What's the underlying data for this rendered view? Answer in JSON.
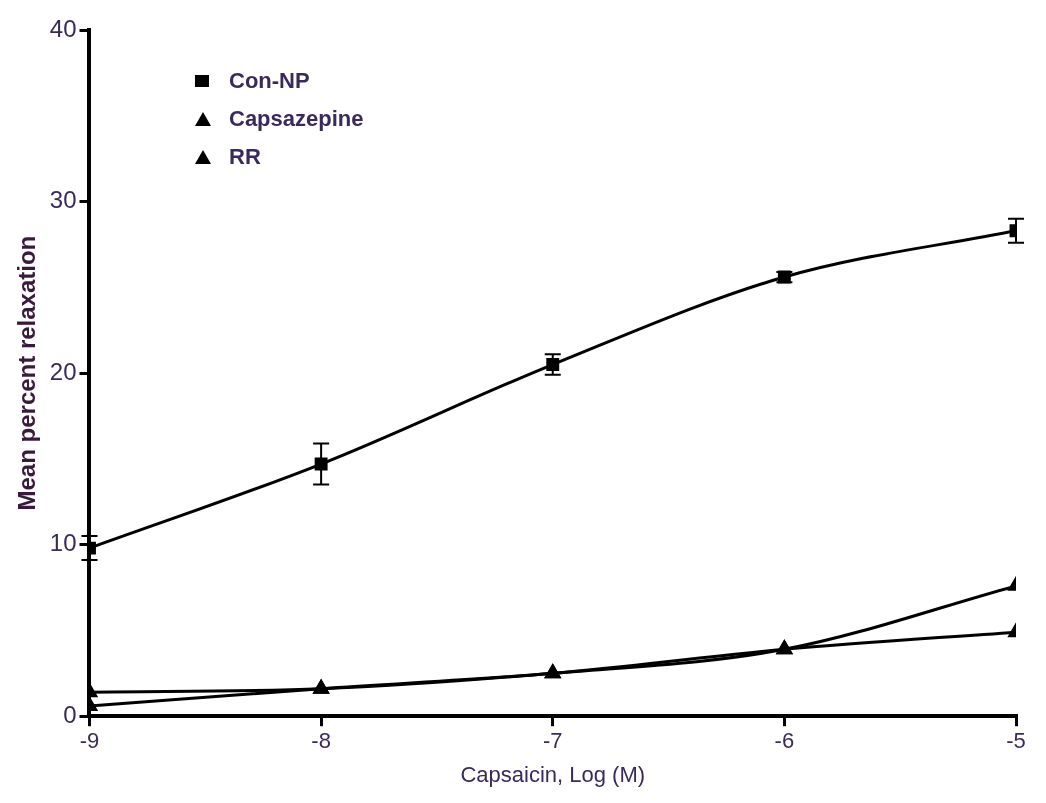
{
  "chart_data": {
    "type": "line",
    "xlabel": "Capsaicin, Log (M)",
    "ylabel": "Mean percent relaxation",
    "x": [
      -9,
      -8,
      -7,
      -6,
      -5
    ],
    "series": [
      {
        "name": "Con-NP",
        "color": "#000000",
        "marker": "square",
        "values": [
          9.8,
          14.7,
          20.5,
          25.6,
          28.3
        ],
        "errors": [
          0.7,
          1.2,
          0.6,
          0.3,
          0.7
        ]
      },
      {
        "name": "Capsazepine",
        "color": "#000000",
        "marker": "triangle",
        "values": [
          0.6,
          1.6,
          2.5,
          3.9,
          7.6
        ]
      },
      {
        "name": "RR",
        "color": "#000000",
        "marker": "triangle",
        "values": [
          1.4,
          1.6,
          2.5,
          3.9,
          4.9
        ]
      }
    ],
    "xlim": [
      -9,
      -5
    ],
    "xticks": [
      -9,
      -8,
      -7,
      -6,
      -5
    ],
    "ylim": [
      0,
      40
    ],
    "yticks": [
      0,
      10,
      20,
      30,
      40
    ],
    "grid": false,
    "legend": "top left",
    "line_style": "solid"
  }
}
